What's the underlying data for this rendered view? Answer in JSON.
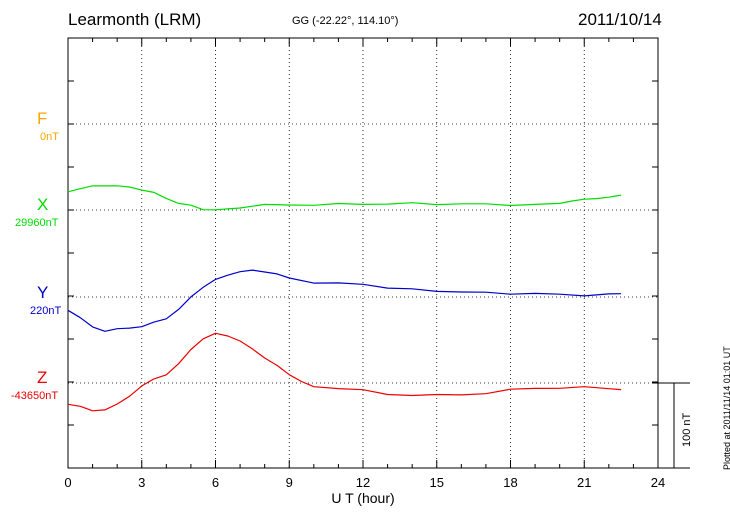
{
  "header": {
    "station": "Learmonth (LRM)",
    "coordinates": "GG (-22.22°, 114.10°)",
    "date": "2011/10/14"
  },
  "plotted_note": "Plotted at 2011/11/14 01:01 UT",
  "scale_bar_label": "100 nT",
  "chart_data": {
    "type": "line",
    "title": "Learmonth (LRM)",
    "xlabel": "U T (hour)",
    "ylabel": "",
    "xlim": [
      0,
      24
    ],
    "x_ticks": [
      0,
      3,
      6,
      9,
      12,
      15,
      18,
      21,
      24
    ],
    "x_tick_labels": [
      "0",
      "3",
      "6",
      "9",
      "12",
      "15",
      "18",
      "21",
      "24"
    ],
    "grid": true,
    "y_offset_nT_scale": "100 nT",
    "series": [
      {
        "name": "F",
        "baseline_label": "0nT",
        "color": "#ffa500",
        "x": [],
        "values": []
      },
      {
        "name": "X",
        "baseline_label": "29960nT",
        "color": "#00dd00",
        "x": [
          0,
          0.5,
          1,
          1.5,
          2,
          2.5,
          3,
          3.5,
          4,
          4.5,
          5,
          5.5,
          6,
          6.5,
          7,
          8,
          9,
          10,
          11,
          12,
          13,
          14,
          15,
          16,
          17,
          18,
          19,
          20,
          20.5,
          21,
          21.5,
          22,
          22.5
        ],
        "values": [
          22,
          25,
          28,
          29,
          28,
          27,
          24,
          20,
          14,
          8,
          5,
          1,
          0,
          1,
          3,
          6,
          6,
          6,
          7,
          7,
          7,
          8,
          7,
          7,
          7,
          6,
          6,
          8,
          11,
          12,
          14,
          15,
          17
        ]
      },
      {
        "name": "Y",
        "baseline_label": "220nT",
        "color": "#0000cc",
        "x": [
          0,
          0.5,
          1,
          1.5,
          2,
          2.5,
          3,
          3.5,
          4,
          4.5,
          5,
          5.5,
          6,
          6.5,
          7,
          7.5,
          8,
          8.5,
          9,
          10,
          11,
          12,
          13,
          14,
          15,
          16,
          17,
          18,
          19,
          20,
          21,
          22,
          22.5
        ],
        "values": [
          -15,
          -25,
          -35,
          -40,
          -38,
          -36,
          -35,
          -30,
          -25,
          -15,
          0,
          12,
          20,
          26,
          30,
          31,
          30,
          27,
          22,
          17,
          16,
          15,
          11,
          9,
          7,
          6,
          5,
          4,
          4,
          3,
          2,
          3,
          4
        ]
      },
      {
        "name": "Z",
        "baseline_label": "-43650nT",
        "color": "#ee0000",
        "x": [
          0,
          0.5,
          1,
          1.5,
          2,
          2.5,
          3,
          3.5,
          4,
          4.5,
          5,
          5.5,
          6,
          6.5,
          7,
          7.5,
          8,
          8.5,
          9,
          9.5,
          10,
          11,
          12,
          13,
          14,
          15,
          16,
          17,
          18,
          19,
          20,
          21,
          22,
          22.5
        ],
        "values": [
          -25,
          -28,
          -32,
          -32,
          -25,
          -15,
          -4,
          5,
          10,
          22,
          40,
          52,
          58,
          56,
          49,
          40,
          30,
          20,
          10,
          2,
          -5,
          -6,
          -8,
          -14,
          -14,
          -14,
          -14,
          -12,
          -8,
          -6,
          -6,
          -5,
          -6,
          -8
        ]
      }
    ]
  }
}
